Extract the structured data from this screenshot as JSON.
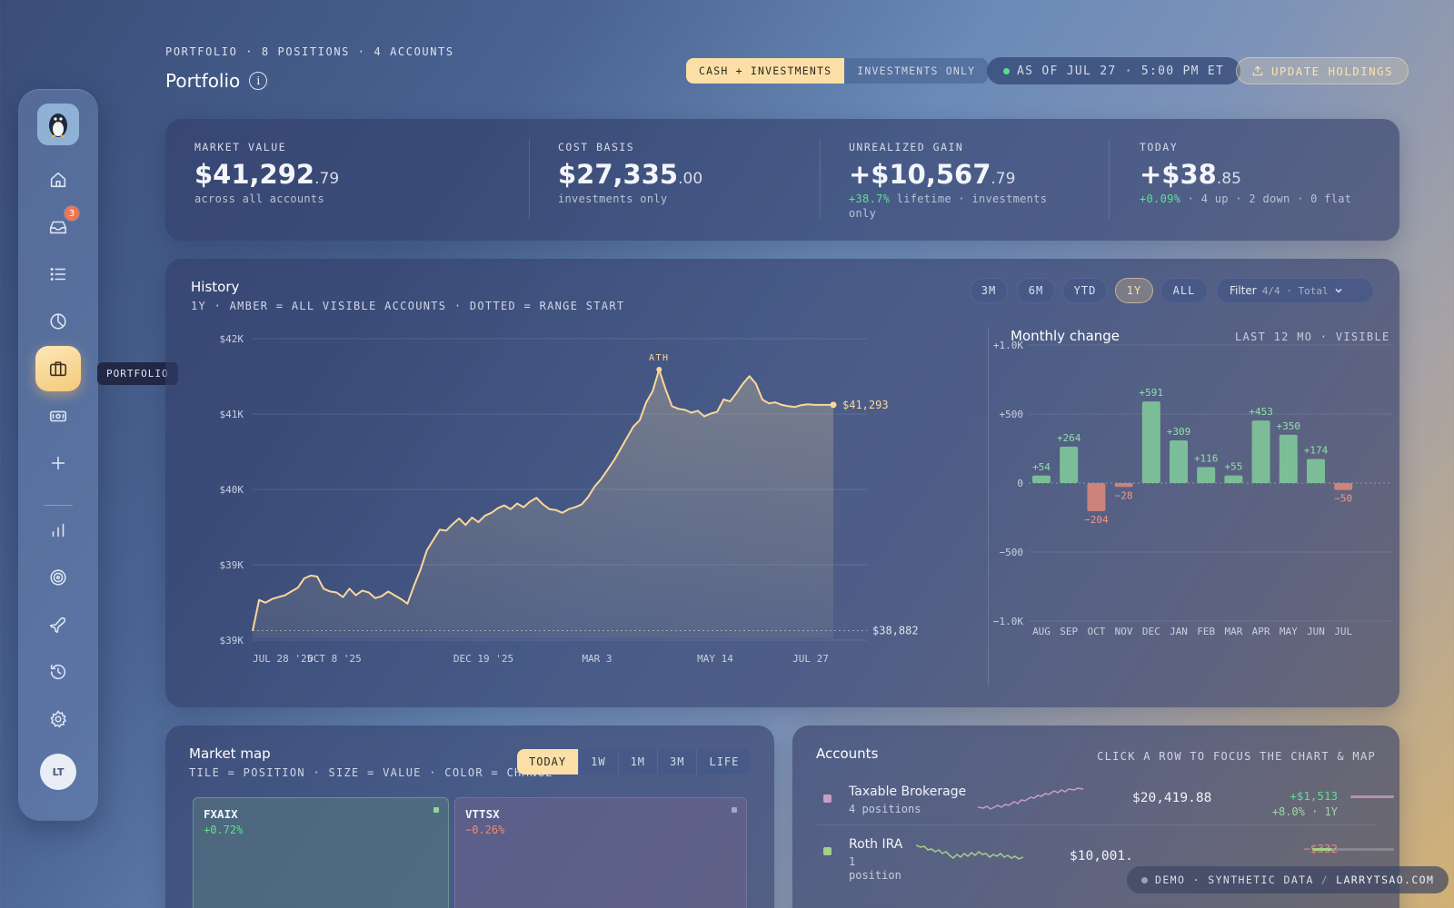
{
  "sidebar": {
    "inbox_badge": "3",
    "tooltip": "PORTFOLIO",
    "avatar": "LT"
  },
  "header": {
    "eyebrow": "PORTFOLIO · 8 POSITIONS · 4 ACCOUNTS",
    "title": "Portfolio",
    "toggle": [
      "CASH + INVESTMENTS",
      "INVESTMENTS ONLY"
    ],
    "as_of": "AS OF JUL 27 · 5:00 PM ET",
    "update_label": "UPDATE HOLDINGS"
  },
  "summary": {
    "market_value": {
      "label": "MARKET VALUE",
      "main": "$41,292",
      "cents": ".79",
      "sub": "across all accounts"
    },
    "cost_basis": {
      "label": "COST BASIS",
      "main": "$27,335",
      "cents": ".00",
      "sub": "investments only"
    },
    "unrealized": {
      "label": "UNREALIZED GAIN",
      "main": "+$10,567",
      "cents": ".79",
      "pct": "+38.7%",
      "sub": " lifetime · investments only"
    },
    "today": {
      "label": "TODAY",
      "main": "+$38",
      "cents": ".85",
      "pct": "+0.09%",
      "sub": " · 4 up · 2 down · 0 flat"
    }
  },
  "history": {
    "title": "History",
    "subtitle": "1Y · AMBER = ALL VISIBLE ACCOUNTS · DOTTED = RANGE START",
    "ranges": [
      "3M",
      "6M",
      "YTD",
      "1Y",
      "ALL"
    ],
    "active_range": "1Y",
    "filter_label": "Filter",
    "filter_value": "4/4 · Total"
  },
  "monthly": {
    "title": "Monthly change",
    "subtitle": "LAST 12 MO · VISIBLE"
  },
  "chart_data": [
    {
      "type": "area",
      "title": "History",
      "x_tick_labels": [
        "JUL 28 '25",
        "OCT 8 '25",
        "DEC 19 '25",
        "MAR 3",
        "MAY 14",
        "JUL 27"
      ],
      "y_tick_labels": [
        "$42K",
        "$41K",
        "$40K",
        "$39K",
        "$39K"
      ],
      "ylim": [
        38800,
        42000
      ],
      "range_start_value": 38882,
      "range_start_label": "$38,882",
      "end_label": "$41,293",
      "ath_label": "ATH",
      "x": [
        0,
        4,
        8,
        12,
        16,
        20,
        24,
        28,
        32,
        36,
        40,
        44,
        48,
        52,
        56,
        60,
        64,
        68,
        72,
        76,
        80,
        84,
        88,
        92,
        96,
        100,
        104,
        108,
        112,
        116,
        120,
        124,
        128,
        132,
        136,
        140,
        144,
        148,
        152,
        156,
        160,
        164,
        168,
        172,
        176,
        180,
        184,
        188,
        192,
        196,
        200,
        204,
        208,
        212,
        216,
        220,
        224,
        228,
        232,
        236,
        240,
        244,
        248,
        252,
        256,
        260,
        264,
        268,
        272,
        276,
        280,
        284,
        288,
        292,
        296,
        300,
        304,
        308,
        312,
        316,
        320,
        324,
        328,
        332,
        336,
        340,
        344,
        348,
        352,
        356,
        360
      ],
      "values": [
        38880,
        39210,
        39180,
        39220,
        39240,
        39260,
        39300,
        39340,
        39440,
        39470,
        39460,
        39330,
        39300,
        39290,
        39240,
        39330,
        39260,
        39310,
        39290,
        39230,
        39250,
        39300,
        39260,
        39220,
        39170,
        39360,
        39530,
        39740,
        39850,
        39960,
        39950,
        40020,
        40080,
        40010,
        40090,
        40040,
        40110,
        40140,
        40190,
        40220,
        40180,
        40240,
        40200,
        40260,
        40300,
        40230,
        40180,
        40170,
        40140,
        40180,
        40200,
        40230,
        40310,
        40420,
        40500,
        40600,
        40700,
        40820,
        40940,
        41060,
        41130,
        41320,
        41440,
        41670,
        41460,
        41280,
        41250,
        41240,
        41210,
        41230,
        41170,
        41200,
        41220,
        41350,
        41330,
        41420,
        41520,
        41600,
        41520,
        41350,
        41310,
        41320,
        41293,
        41280,
        41270,
        41290,
        41300,
        41293,
        41293,
        41293,
        41293
      ]
    },
    {
      "type": "bar",
      "title": "Monthly change",
      "categories": [
        "AUG",
        "SEP",
        "OCT",
        "NOV",
        "DEC",
        "JAN",
        "FEB",
        "MAR",
        "APR",
        "MAY",
        "JUN",
        "JUL"
      ],
      "values": [
        54,
        264,
        -204,
        -28,
        591,
        309,
        116,
        55,
        453,
        350,
        174,
        -50
      ],
      "value_labels": [
        "+54",
        "+264",
        "−204",
        "−28",
        "+591",
        "+309",
        "+116",
        "+55",
        "+453",
        "+350",
        "+174",
        "−50"
      ],
      "y_tick_labels": [
        "+1.0K",
        "+500",
        "0",
        "−500",
        "−1.0K"
      ],
      "ylim": [
        -1000,
        1000
      ]
    }
  ],
  "market_map": {
    "title": "Market map",
    "subtitle": "TILE = POSITION · SIZE = VALUE · COLOR = CHANGE",
    "periods": [
      "TODAY",
      "1W",
      "1M",
      "3M",
      "LIFE"
    ],
    "active_period": "TODAY",
    "tiles": [
      {
        "ticker": "FXAIX",
        "change": "+0.72%"
      },
      {
        "ticker": "VTTSX",
        "change": "−0.26%"
      }
    ]
  },
  "accounts": {
    "title": "Accounts",
    "hint": "CLICK A ROW TO FOCUS THE CHART & MAP",
    "rows": [
      {
        "name": "Taxable Brokerage",
        "positions": "4 positions",
        "balance": "$20,419.88",
        "gain": "+$1,513",
        "pct": "+8.0% · 1Y",
        "color": "#c99cc6"
      },
      {
        "name": "Roth IRA",
        "positions": "1",
        "positions2": "position",
        "balance": "$10,001.",
        "gain": "−$332",
        "color": "#a6cf8a"
      }
    ]
  },
  "footer": {
    "demo": "DEMO · SYNTHETIC DATA",
    "site": "LARRYTSAO.COM"
  }
}
